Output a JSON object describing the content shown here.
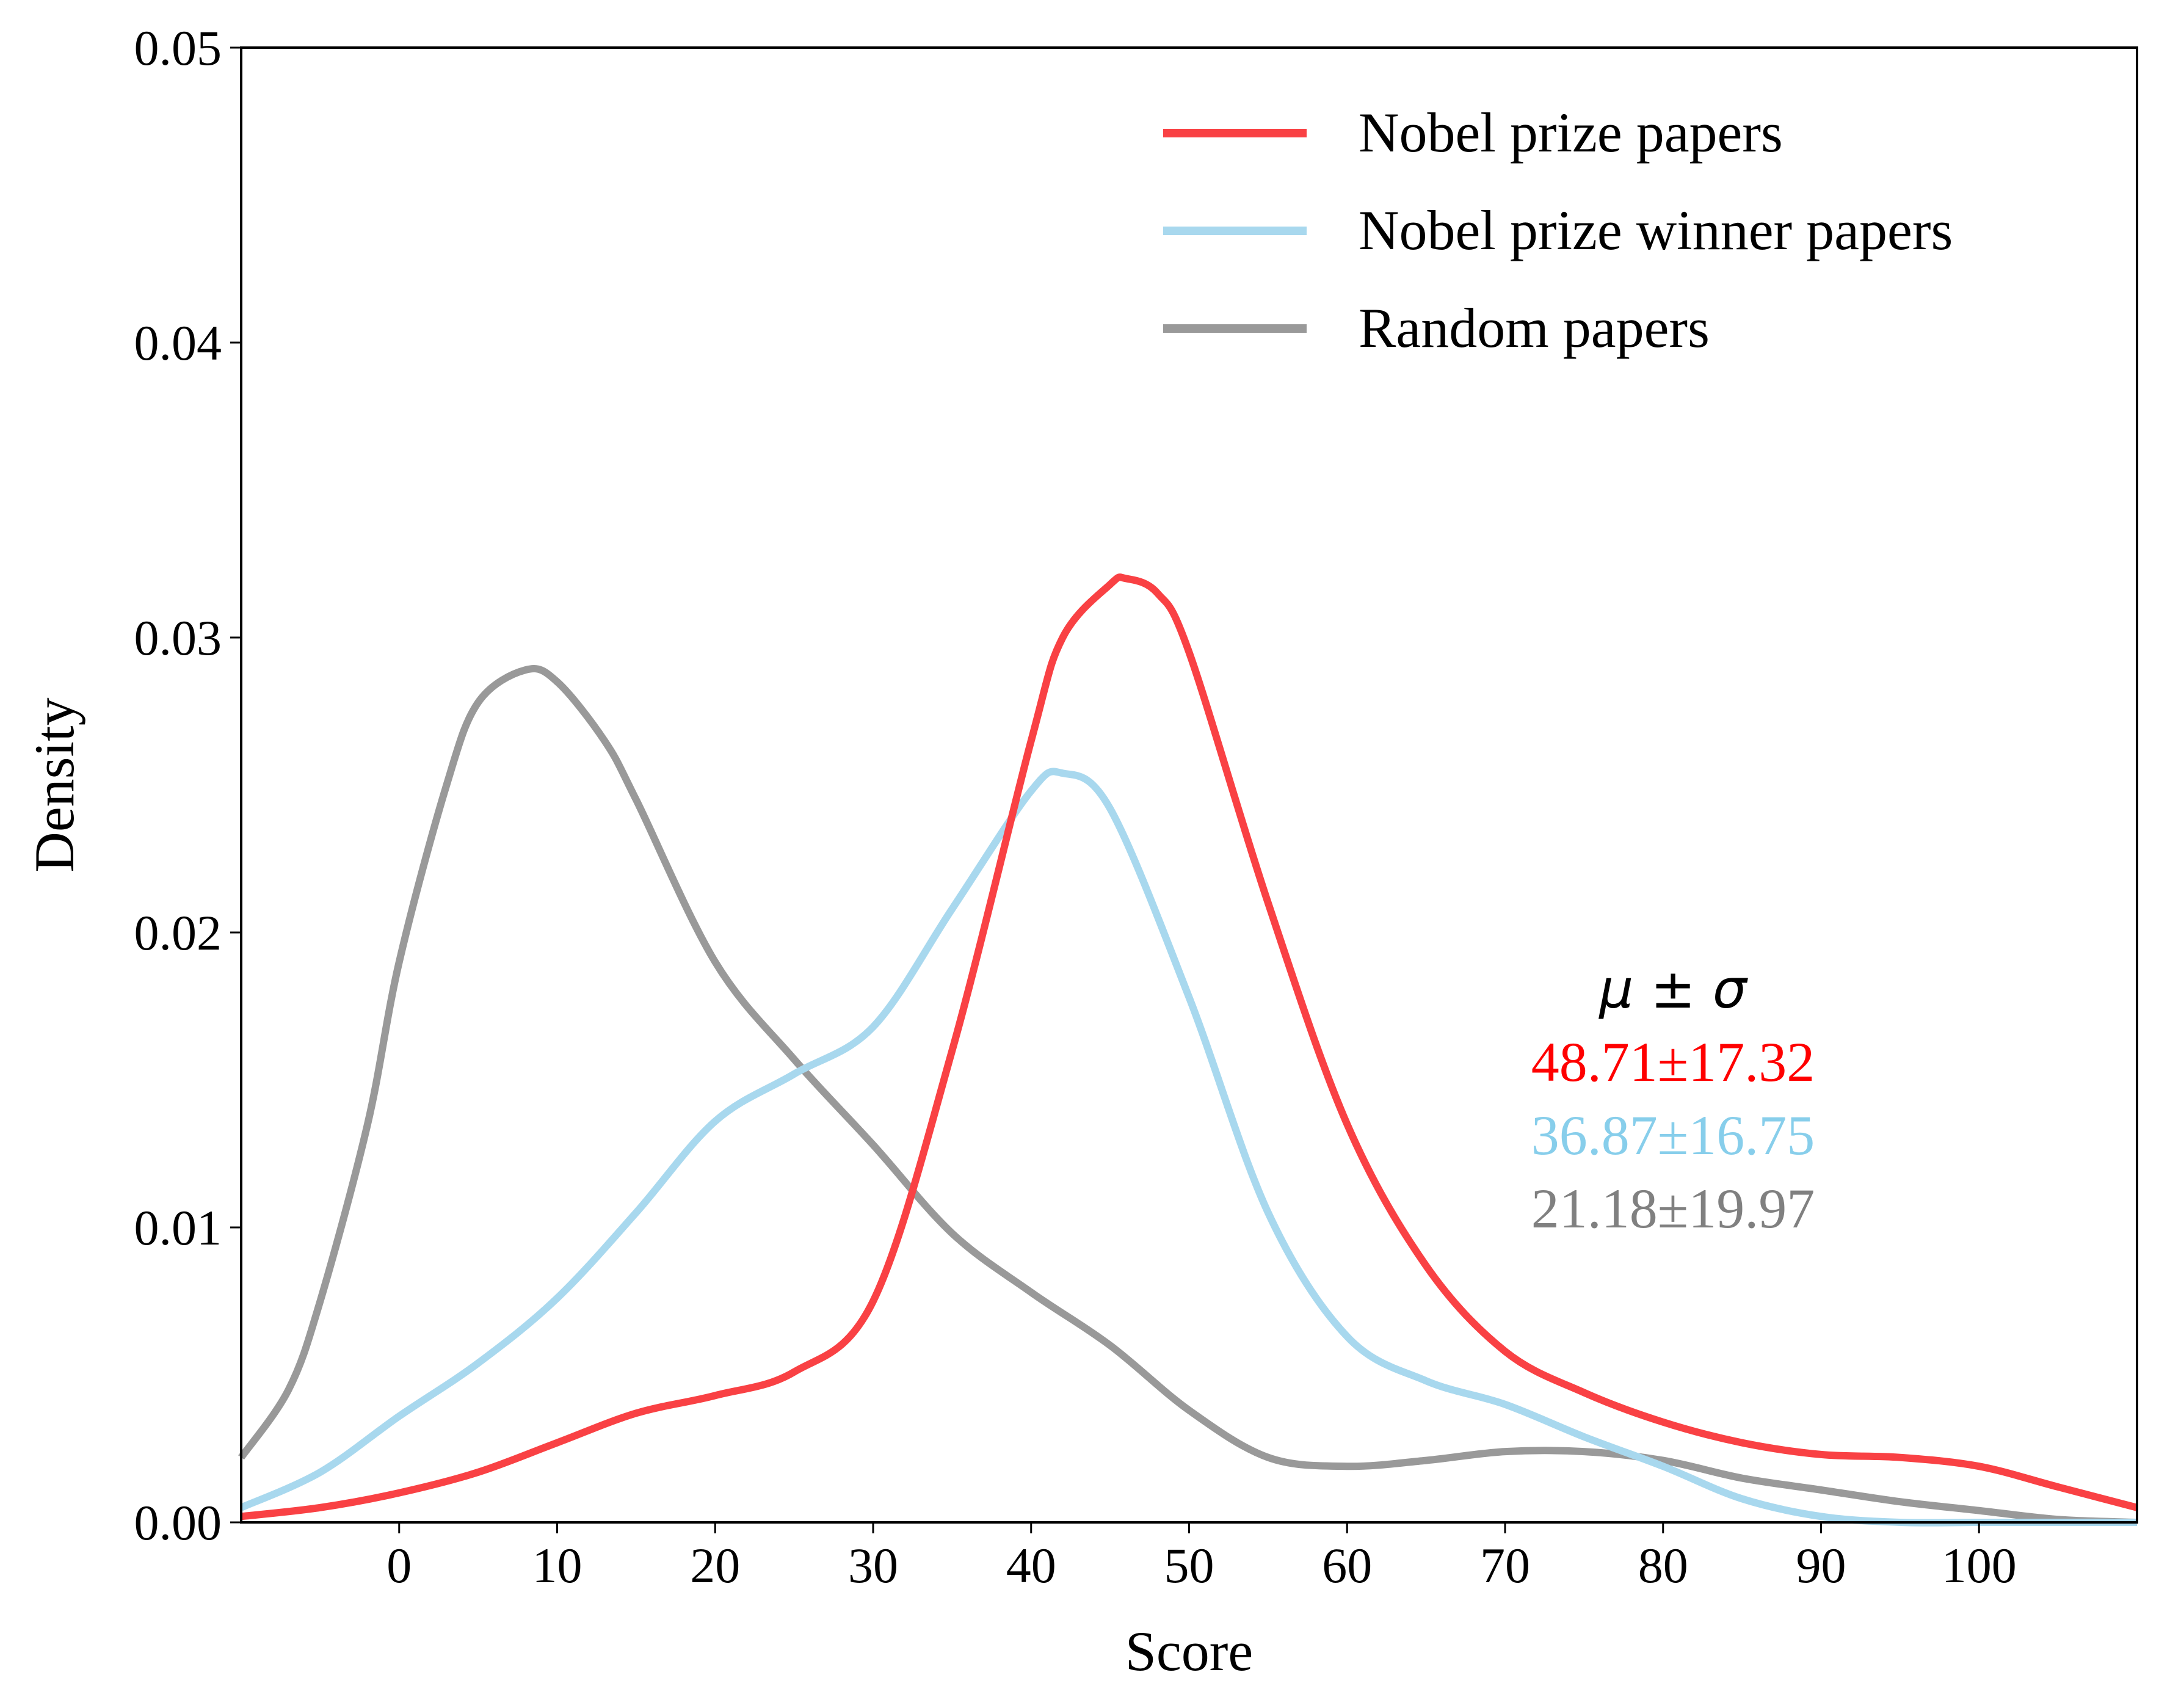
{
  "chart_data": {
    "type": "line",
    "title": "",
    "xlabel": "Score",
    "ylabel": "Density",
    "xlim": [
      -10,
      110
    ],
    "ylim": [
      0,
      0.05
    ],
    "xticks": [
      0,
      10,
      20,
      30,
      40,
      50,
      60,
      70,
      80,
      90,
      100
    ],
    "xtick_labels": [
      "0",
      "10",
      "20",
      "30",
      "40",
      "50",
      "60",
      "70",
      "80",
      "90",
      "100"
    ],
    "yticks": [
      0,
      0.01,
      0.02,
      0.03,
      0.04,
      0.05
    ],
    "ytick_labels": [
      "0.00",
      "0.01",
      "0.02",
      "0.03",
      "0.04",
      "0.05"
    ],
    "grid": false,
    "legend_position": "top-right",
    "series": [
      {
        "name": "Nobel prize papers",
        "color": "#f94144",
        "x": [
          -10,
          -5,
          0,
          5,
          10,
          15,
          20,
          25,
          30,
          35,
          40,
          42,
          45,
          46,
          48,
          50,
          55,
          60,
          65,
          70,
          75,
          80,
          85,
          90,
          95,
          100,
          105,
          110
        ],
        "y": [
          0.0002,
          0.0005,
          0.001,
          0.0017,
          0.0027,
          0.0037,
          0.0043,
          0.0051,
          0.0075,
          0.016,
          0.0265,
          0.03,
          0.0318,
          0.032,
          0.0315,
          0.0295,
          0.021,
          0.0135,
          0.0087,
          0.0058,
          0.0044,
          0.0034,
          0.0027,
          0.0023,
          0.0022,
          0.0019,
          0.0012,
          0.0005
        ]
      },
      {
        "name": "Nobel prize winner papers",
        "color": "#a8d8ee",
        "x": [
          -10,
          -5,
          0,
          5,
          10,
          15,
          20,
          25,
          30,
          35,
          40,
          42,
          45,
          50,
          55,
          60,
          65,
          70,
          75,
          80,
          85,
          90,
          95,
          100,
          105,
          110
        ],
        "y": [
          0.0005,
          0.0017,
          0.0036,
          0.0054,
          0.0076,
          0.0105,
          0.0136,
          0.0152,
          0.0168,
          0.0208,
          0.0248,
          0.0254,
          0.0242,
          0.0178,
          0.0105,
          0.0063,
          0.0048,
          0.004,
          0.0029,
          0.0019,
          0.0008,
          0.0002,
          0.0,
          0.0,
          0.0,
          0.0
        ]
      },
      {
        "name": "Random papers",
        "color": "#999999",
        "x": [
          -10,
          -7,
          -5,
          -2,
          0,
          3,
          5,
          8,
          10,
          13,
          15,
          20,
          25,
          30,
          35,
          40,
          45,
          50,
          55,
          60,
          65,
          70,
          75,
          80,
          85,
          90,
          95,
          100,
          105,
          110
        ],
        "y": [
          0.0022,
          0.0045,
          0.0075,
          0.0135,
          0.019,
          0.025,
          0.0278,
          0.0289,
          0.0285,
          0.0265,
          0.0245,
          0.019,
          0.0157,
          0.0128,
          0.0098,
          0.0078,
          0.006,
          0.0038,
          0.0022,
          0.0019,
          0.0021,
          0.0024,
          0.0024,
          0.0021,
          0.0015,
          0.0011,
          0.0007,
          0.0004,
          0.0001,
          0.0
        ]
      }
    ],
    "annotation": {
      "header": "μ ± σ",
      "lines": [
        {
          "text": "48.71±17.32",
          "color": "#ff0000"
        },
        {
          "text": "36.87±16.75",
          "color": "#87ceeb"
        },
        {
          "text": "21.18±19.97",
          "color": "#808080"
        }
      ]
    }
  }
}
